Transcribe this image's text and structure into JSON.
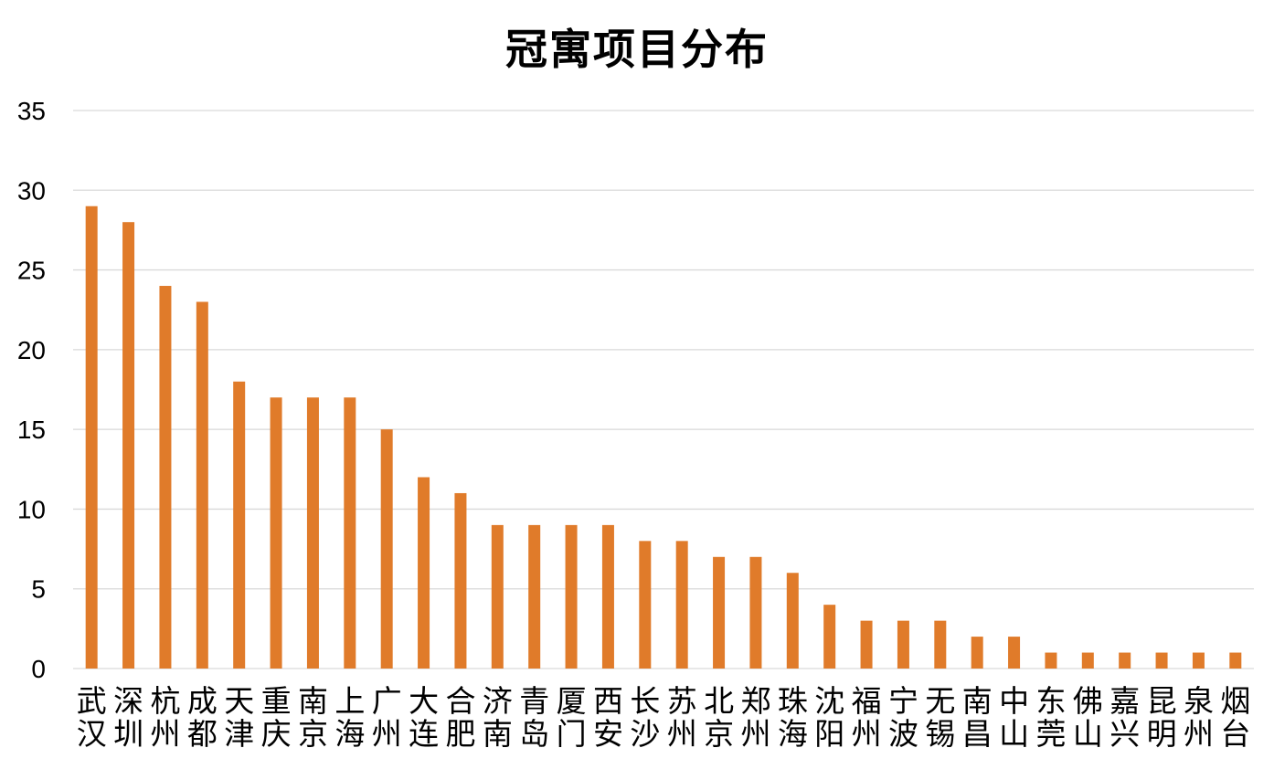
{
  "chart_data": {
    "type": "bar",
    "title": "冠寓项目分布",
    "xlabel": "",
    "ylabel": "",
    "ylim": [
      0,
      35
    ],
    "yticks": [
      0,
      5,
      10,
      15,
      20,
      25,
      30,
      35
    ],
    "grid": true,
    "legend": "none",
    "bar_color": "#E07B2A",
    "grid_color": "#D9D9D9",
    "categories": [
      "武汉",
      "深圳",
      "杭州",
      "成都",
      "天津",
      "重庆",
      "南京",
      "上海",
      "广州",
      "大连",
      "合肥",
      "济南",
      "青岛",
      "厦门",
      "西安",
      "长沙",
      "苏州",
      "北京",
      "郑州",
      "珠海",
      "沈阳",
      "福州",
      "宁波",
      "无锡",
      "南昌",
      "中山",
      "东莞",
      "佛山",
      "嘉兴",
      "昆明",
      "泉州",
      "烟台"
    ],
    "values": [
      29,
      28,
      24,
      23,
      18,
      17,
      17,
      17,
      15,
      12,
      11,
      9,
      9,
      9,
      9,
      8,
      8,
      7,
      7,
      6,
      4,
      3,
      3,
      3,
      2,
      2,
      1,
      1,
      1,
      1,
      1,
      1
    ]
  }
}
